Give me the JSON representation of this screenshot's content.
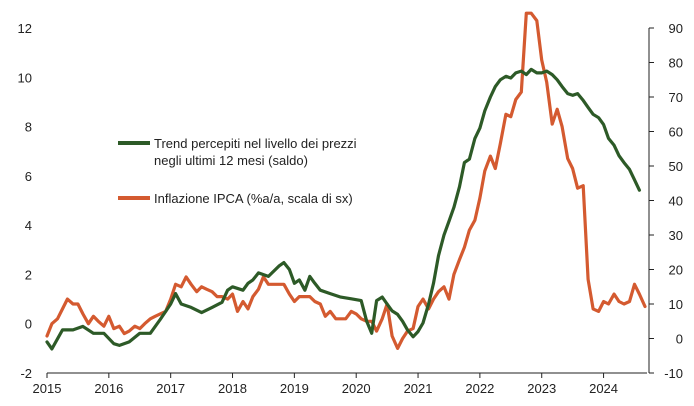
{
  "chart_data": {
    "type": "line",
    "x_unit": "year",
    "x_ticks": [
      "2015",
      "2016",
      "2017",
      "2018",
      "2019",
      "2020",
      "2021",
      "2022",
      "2023",
      "2024"
    ],
    "xlim": [
      2015,
      2024.67
    ],
    "y_left": {
      "lim": [
        -2,
        12
      ],
      "ticks": [
        "-2",
        "0",
        "2",
        "4",
        "6",
        "8",
        "10",
        "12"
      ]
    },
    "y_right": {
      "lim": [
        -10,
        90
      ],
      "ticks": [
        "-10",
        "0",
        "10",
        "20",
        "30",
        "40",
        "50",
        "60",
        "70",
        "80",
        "90"
      ]
    },
    "grid": false,
    "legend_position": "upper-left-center",
    "series": [
      {
        "name_lines": [
          "Trend percepiti nel livello dei prezzi",
          "negli ultimi 12 mesi (saldo)"
        ],
        "axis": "right",
        "color": "#2d5a27",
        "points": [
          [
            2015.0,
            -1.0
          ],
          [
            2015.08,
            -3.0
          ],
          [
            2015.25,
            2.5
          ],
          [
            2015.42,
            2.5
          ],
          [
            2015.58,
            3.5
          ],
          [
            2015.75,
            1.5
          ],
          [
            2015.92,
            1.5
          ],
          [
            2016.08,
            -1.5
          ],
          [
            2016.17,
            -2.0
          ],
          [
            2016.33,
            -1.0
          ],
          [
            2016.5,
            1.5
          ],
          [
            2016.67,
            1.5
          ],
          [
            2016.83,
            5.5
          ],
          [
            2017.0,
            10.0
          ],
          [
            2017.08,
            13.0
          ],
          [
            2017.17,
            10.0
          ],
          [
            2017.33,
            9.0
          ],
          [
            2017.5,
            7.5
          ],
          [
            2017.67,
            9.0
          ],
          [
            2017.83,
            10.5
          ],
          [
            2017.92,
            14.0
          ],
          [
            2018.0,
            15.0
          ],
          [
            2018.17,
            14.0
          ],
          [
            2018.25,
            16.0
          ],
          [
            2018.33,
            17.0
          ],
          [
            2018.42,
            19.0
          ],
          [
            2018.58,
            18.0
          ],
          [
            2018.75,
            21.0
          ],
          [
            2018.83,
            22.0
          ],
          [
            2018.92,
            20.0
          ],
          [
            2019.0,
            16.0
          ],
          [
            2019.08,
            17.0
          ],
          [
            2019.17,
            14.0
          ],
          [
            2019.25,
            18.0
          ],
          [
            2019.33,
            16.0
          ],
          [
            2019.42,
            14.0
          ],
          [
            2019.58,
            13.0
          ],
          [
            2019.75,
            12.0
          ],
          [
            2019.92,
            11.5
          ],
          [
            2020.08,
            11.0
          ],
          [
            2020.17,
            5.0
          ],
          [
            2020.25,
            1.5
          ],
          [
            2020.33,
            11.0
          ],
          [
            2020.42,
            12.0
          ],
          [
            2020.5,
            10.0
          ],
          [
            2020.58,
            8.0
          ],
          [
            2020.67,
            7.0
          ],
          [
            2020.75,
            5.0
          ],
          [
            2020.83,
            2.5
          ],
          [
            2020.92,
            0.5
          ],
          [
            2021.0,
            2.0
          ],
          [
            2021.08,
            4.5
          ],
          [
            2021.17,
            10.0
          ],
          [
            2021.25,
            16.0
          ],
          [
            2021.33,
            24.0
          ],
          [
            2021.42,
            30.0
          ],
          [
            2021.5,
            34.0
          ],
          [
            2021.58,
            38.0
          ],
          [
            2021.67,
            44.0
          ],
          [
            2021.75,
            51.0
          ],
          [
            2021.83,
            52.0
          ],
          [
            2021.92,
            58.0
          ],
          [
            2022.0,
            61.0
          ],
          [
            2022.08,
            66.0
          ],
          [
            2022.17,
            70.0
          ],
          [
            2022.25,
            73.0
          ],
          [
            2022.33,
            75.0
          ],
          [
            2022.42,
            76.0
          ],
          [
            2022.5,
            75.5
          ],
          [
            2022.58,
            77.0
          ],
          [
            2022.67,
            77.5
          ],
          [
            2022.75,
            76.5
          ],
          [
            2022.83,
            78.0
          ],
          [
            2022.92,
            77.0
          ],
          [
            2023.0,
            77.0
          ],
          [
            2023.08,
            77.5
          ],
          [
            2023.17,
            76.5
          ],
          [
            2023.25,
            75.0
          ],
          [
            2023.33,
            73.0
          ],
          [
            2023.42,
            71.0
          ],
          [
            2023.5,
            70.5
          ],
          [
            2023.58,
            71.0
          ],
          [
            2023.67,
            69.0
          ],
          [
            2023.75,
            67.0
          ],
          [
            2023.83,
            65.0
          ],
          [
            2023.92,
            64.0
          ],
          [
            2024.0,
            62.0
          ],
          [
            2024.08,
            58.0
          ],
          [
            2024.17,
            56.0
          ],
          [
            2024.25,
            53.0
          ],
          [
            2024.33,
            51.0
          ],
          [
            2024.42,
            49.0
          ],
          [
            2024.5,
            46.0
          ],
          [
            2024.58,
            43.0
          ]
        ]
      },
      {
        "name": "Inflazione IPCA (%a/a, scala di sx)",
        "axis": "left",
        "color": "#d45a30",
        "points": [
          [
            2015.0,
            -0.5
          ],
          [
            2015.08,
            0.0
          ],
          [
            2015.17,
            0.2
          ],
          [
            2015.25,
            0.6
          ],
          [
            2015.33,
            1.0
          ],
          [
            2015.42,
            0.8
          ],
          [
            2015.5,
            0.8
          ],
          [
            2015.58,
            0.4
          ],
          [
            2015.67,
            0.0
          ],
          [
            2015.75,
            0.3
          ],
          [
            2015.83,
            0.1
          ],
          [
            2015.92,
            -0.1
          ],
          [
            2016.0,
            0.3
          ],
          [
            2016.08,
            -0.2
          ],
          [
            2016.17,
            -0.1
          ],
          [
            2016.25,
            -0.4
          ],
          [
            2016.33,
            -0.3
          ],
          [
            2016.42,
            -0.1
          ],
          [
            2016.5,
            -0.2
          ],
          [
            2016.58,
            0.0
          ],
          [
            2016.67,
            0.2
          ],
          [
            2016.75,
            0.3
          ],
          [
            2016.83,
            0.4
          ],
          [
            2016.92,
            0.5
          ],
          [
            2017.0,
            1.0
          ],
          [
            2017.08,
            1.6
          ],
          [
            2017.17,
            1.5
          ],
          [
            2017.25,
            1.9
          ],
          [
            2017.33,
            1.6
          ],
          [
            2017.42,
            1.3
          ],
          [
            2017.5,
            1.5
          ],
          [
            2017.58,
            1.4
          ],
          [
            2017.67,
            1.3
          ],
          [
            2017.75,
            1.1
          ],
          [
            2017.83,
            1.1
          ],
          [
            2017.92,
            1.0
          ],
          [
            2018.0,
            1.2
          ],
          [
            2018.08,
            0.5
          ],
          [
            2018.17,
            0.9
          ],
          [
            2018.25,
            0.6
          ],
          [
            2018.33,
            1.1
          ],
          [
            2018.42,
            1.4
          ],
          [
            2018.5,
            1.9
          ],
          [
            2018.58,
            1.6
          ],
          [
            2018.67,
            1.6
          ],
          [
            2018.75,
            1.6
          ],
          [
            2018.83,
            1.6
          ],
          [
            2018.92,
            1.2
          ],
          [
            2019.0,
            0.9
          ],
          [
            2019.08,
            1.1
          ],
          [
            2019.17,
            1.1
          ],
          [
            2019.25,
            1.1
          ],
          [
            2019.33,
            0.9
          ],
          [
            2019.42,
            0.8
          ],
          [
            2019.5,
            0.3
          ],
          [
            2019.58,
            0.5
          ],
          [
            2019.67,
            0.2
          ],
          [
            2019.75,
            0.2
          ],
          [
            2019.83,
            0.2
          ],
          [
            2019.92,
            0.5
          ],
          [
            2020.0,
            0.4
          ],
          [
            2020.08,
            0.2
          ],
          [
            2020.17,
            0.1
          ],
          [
            2020.25,
            0.1
          ],
          [
            2020.33,
            -0.3
          ],
          [
            2020.42,
            0.2
          ],
          [
            2020.5,
            0.8
          ],
          [
            2020.58,
            -0.5
          ],
          [
            2020.67,
            -1.0
          ],
          [
            2020.75,
            -0.6
          ],
          [
            2020.83,
            -0.3
          ],
          [
            2020.92,
            -0.2
          ],
          [
            2021.0,
            0.7
          ],
          [
            2021.08,
            1.0
          ],
          [
            2021.17,
            0.6
          ],
          [
            2021.25,
            1.0
          ],
          [
            2021.33,
            1.3
          ],
          [
            2021.42,
            1.5
          ],
          [
            2021.5,
            1.0
          ],
          [
            2021.58,
            2.0
          ],
          [
            2021.67,
            2.6
          ],
          [
            2021.75,
            3.1
          ],
          [
            2021.83,
            3.8
          ],
          [
            2021.92,
            4.2
          ],
          [
            2022.0,
            5.1
          ],
          [
            2022.08,
            6.2
          ],
          [
            2022.17,
            6.8
          ],
          [
            2022.25,
            6.3
          ],
          [
            2022.33,
            7.3
          ],
          [
            2022.42,
            8.5
          ],
          [
            2022.5,
            8.4
          ],
          [
            2022.58,
            9.1
          ],
          [
            2022.67,
            9.4
          ],
          [
            2022.75,
            12.6
          ],
          [
            2022.83,
            12.6
          ],
          [
            2022.92,
            12.3
          ],
          [
            2023.0,
            10.7
          ],
          [
            2023.08,
            9.8
          ],
          [
            2023.17,
            8.1
          ],
          [
            2023.25,
            8.7
          ],
          [
            2023.33,
            8.0
          ],
          [
            2023.42,
            6.7
          ],
          [
            2023.5,
            6.3
          ],
          [
            2023.58,
            5.5
          ],
          [
            2023.67,
            5.6
          ],
          [
            2023.75,
            1.8
          ],
          [
            2023.83,
            0.6
          ],
          [
            2023.92,
            0.5
          ],
          [
            2024.0,
            0.9
          ],
          [
            2024.08,
            0.8
          ],
          [
            2024.17,
            1.2
          ],
          [
            2024.25,
            0.9
          ],
          [
            2024.33,
            0.8
          ],
          [
            2024.42,
            0.9
          ],
          [
            2024.5,
            1.6
          ],
          [
            2024.58,
            1.2
          ],
          [
            2024.67,
            0.7
          ]
        ]
      }
    ]
  }
}
